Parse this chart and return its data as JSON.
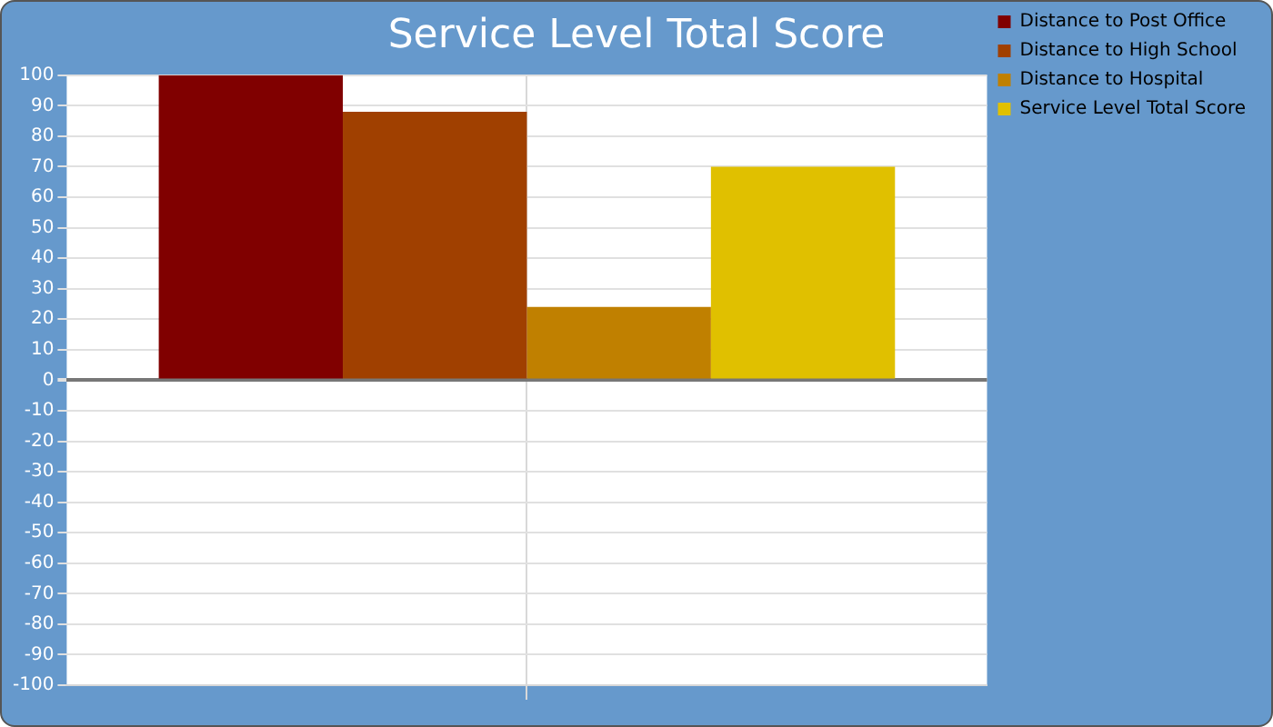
{
  "chart_data": {
    "type": "bar",
    "title": "Service Level Total Score",
    "categories": [
      null
    ],
    "series": [
      {
        "name": "Distance to Post Office",
        "color": "#800000",
        "values": [
          100
        ]
      },
      {
        "name": "Distance to High School",
        "color": "#a04000",
        "values": [
          88
        ]
      },
      {
        "name": "Distance to Hospital",
        "color": "#c08000",
        "values": [
          24
        ]
      },
      {
        "name": "Service Level Total Score",
        "color": "#e0c000",
        "values": [
          70
        ]
      }
    ],
    "ylim": [
      -100,
      100
    ],
    "yticks": [
      -100,
      -90,
      -80,
      -70,
      -60,
      -50,
      -40,
      -30,
      -20,
      -10,
      0,
      10,
      20,
      30,
      40,
      50,
      60,
      70,
      80,
      90,
      100
    ],
    "grid": true,
    "legend": "right"
  }
}
